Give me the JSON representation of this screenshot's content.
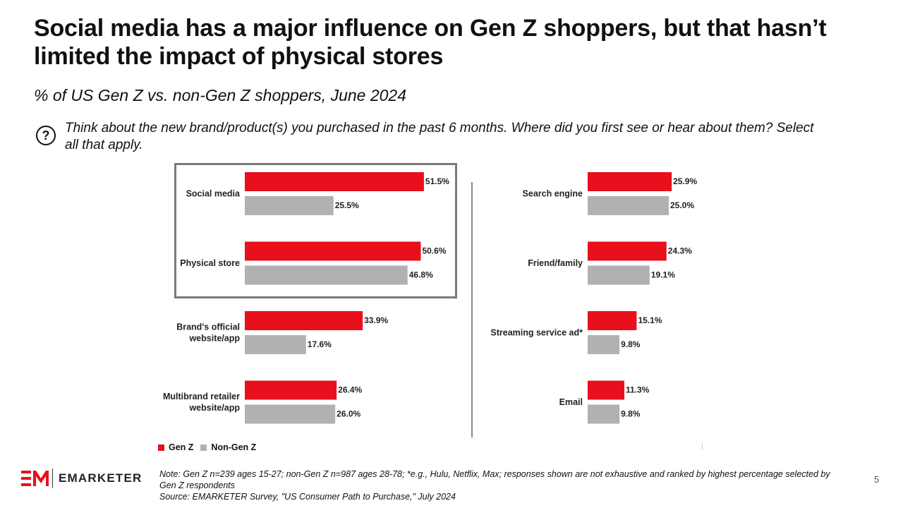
{
  "header": {
    "title": "Social media has a major influence on Gen Z shoppers, but that hasn’t limited the impact of physical stores",
    "subtitle": "% of US Gen Z vs. non-Gen Z shoppers, June 2024",
    "question_icon": "question-circle-icon",
    "question": "Think about the new brand/product(s) you purchased in the past 6 months. Where did you first see or hear about them? Select all that apply."
  },
  "colors": {
    "gen_z": "#e8101c",
    "non_gen_z": "#b1b1b1",
    "highlight_border": "#7a7a7a"
  },
  "chart_data": {
    "type": "bar",
    "orientation": "horizontal",
    "title": "Social media has a major influence on Gen Z shoppers, but that hasn’t limited the impact of physical stores",
    "subtitle": "% of US Gen Z vs. non-Gen Z shoppers, June 2024",
    "xlabel": "",
    "ylabel": "",
    "unit": "%",
    "grid": false,
    "legend_placement": "bottom-left",
    "categories": [
      "Social media",
      "Physical store",
      "Brand's official website/app",
      "Multibrand retailer website/app",
      "Search engine",
      "Friend/family",
      "Streaming service ad*",
      "Email"
    ],
    "category_lines": [
      [
        "Social media"
      ],
      [
        "Physical store"
      ],
      [
        "Brand's official",
        "website/app"
      ],
      [
        "Multibrand retailer",
        "website/app"
      ],
      [
        "Search engine"
      ],
      [
        "Friend/family"
      ],
      [
        "Streaming service ad*"
      ],
      [
        "Email"
      ]
    ],
    "highlighted_categories": [
      "Social media",
      "Physical store"
    ],
    "series": [
      {
        "name": "Gen Z",
        "values": [
          51.5,
          50.6,
          33.9,
          26.4,
          25.9,
          24.3,
          15.1,
          11.3
        ],
        "labels": [
          "51.5%",
          "50.6%",
          "33.9%",
          "26.4%",
          "25.9%",
          "24.3%",
          "15.1%",
          "11.3%"
        ]
      },
      {
        "name": "Non-Gen Z",
        "values": [
          25.5,
          46.8,
          17.6,
          26.0,
          25.0,
          19.1,
          9.8,
          9.8
        ],
        "labels": [
          "25.5%",
          "46.8%",
          "17.6%",
          "26.0%",
          "25.0%",
          "19.1%",
          "9.8%",
          "9.8%"
        ]
      }
    ]
  },
  "legend": [
    {
      "label": "Gen Z"
    },
    {
      "label": "Non-Gen Z"
    }
  ],
  "footer": {
    "logo_mark": "EM",
    "logo_text": "EMARKETER",
    "note": "Note: Gen Z n=239 ages 15-27; non-Gen Z n=987 ages 28-78; *e.g., Hulu, Netflix, Max; responses shown are not exhaustive and ranked by highest percentage selected by Gen Z respondents",
    "source": "Source: EMARKETER Survey, \"US Consumer Path to Purchase,\" July 2024",
    "page_number": "5"
  }
}
